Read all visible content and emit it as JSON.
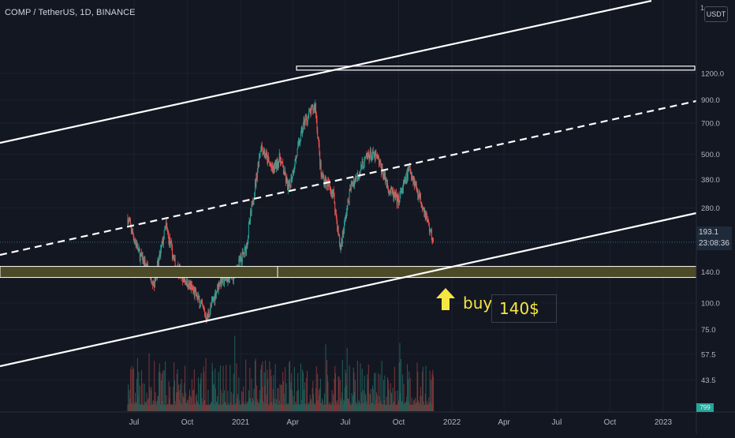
{
  "header": {
    "symbol_title": "COMP / TetherUS, 1D, BINANCE",
    "currency": "USDT",
    "top_tick": "1"
  },
  "price_tag": {
    "price": "193.1",
    "countdown": "23:08:36"
  },
  "volume_tag": "799",
  "annotations": {
    "buy_label": "buy",
    "target_price": "140$"
  },
  "colors": {
    "background": "#131722",
    "up": "#26a69a",
    "down": "#ef5350",
    "channel": "#ffffff",
    "support_zone": "#4c4a27",
    "annotation": "#f5e642"
  },
  "chart_data": {
    "type": "candlestick",
    "title": "COMP / TetherUS, 1D, BINANCE",
    "y_scale": "log",
    "y_unit": "USDT",
    "y_ticks": [
      1200,
      900,
      700,
      500,
      380,
      280,
      140,
      100,
      75,
      57.5,
      43.5
    ],
    "y_tick_labels": [
      "1200.0",
      "900.0",
      "700.0",
      "500.0",
      "380.0",
      "280.0",
      "140.0",
      "100.0",
      "75.0",
      "57.5",
      "43.5"
    ],
    "x_ticks": [
      "2020-07-01",
      "2020-10-01",
      "2021-01-01",
      "2021-04-01",
      "2021-07-01",
      "2021-10-01",
      "2022-01-01",
      "2022-04-01",
      "2022-07-01",
      "2022-10-01",
      "2023-01-01"
    ],
    "x_tick_labels": [
      "Jul",
      "Oct",
      "2021",
      "Apr",
      "Jul",
      "Oct",
      "2022",
      "Apr",
      "Jul",
      "Oct",
      "2023"
    ],
    "last_price": 193.1,
    "price_path": [
      [
        "2020-06-20",
        250
      ],
      [
        "2020-07-10",
        170
      ],
      [
        "2020-08-05",
        125
      ],
      [
        "2020-08-25",
        230
      ],
      [
        "2020-09-10",
        150
      ],
      [
        "2020-10-15",
        110
      ],
      [
        "2020-11-04",
        85
      ],
      [
        "2020-11-25",
        125
      ],
      [
        "2020-12-20",
        135
      ],
      [
        "2021-01-10",
        180
      ],
      [
        "2021-02-05",
        550
      ],
      [
        "2021-02-25",
        420
      ],
      [
        "2021-03-10",
        480
      ],
      [
        "2021-03-25",
        340
      ],
      [
        "2021-04-20",
        700
      ],
      [
        "2021-05-10",
        850
      ],
      [
        "2021-05-20",
        400
      ],
      [
        "2021-06-10",
        330
      ],
      [
        "2021-06-22",
        180
      ],
      [
        "2021-07-10",
        350
      ],
      [
        "2021-08-10",
        500
      ],
      [
        "2021-08-25",
        480
      ],
      [
        "2021-09-15",
        340
      ],
      [
        "2021-09-30",
        300
      ],
      [
        "2021-10-20",
        430
      ],
      [
        "2021-11-15",
        270
      ],
      [
        "2021-11-30",
        193.1
      ]
    ],
    "volume": {
      "last": 799
    },
    "drawings": {
      "parallel_channel": "rising",
      "horizontal_zones": [
        140,
        1200
      ],
      "annotation": {
        "text": "buy",
        "price": "140$"
      }
    }
  }
}
